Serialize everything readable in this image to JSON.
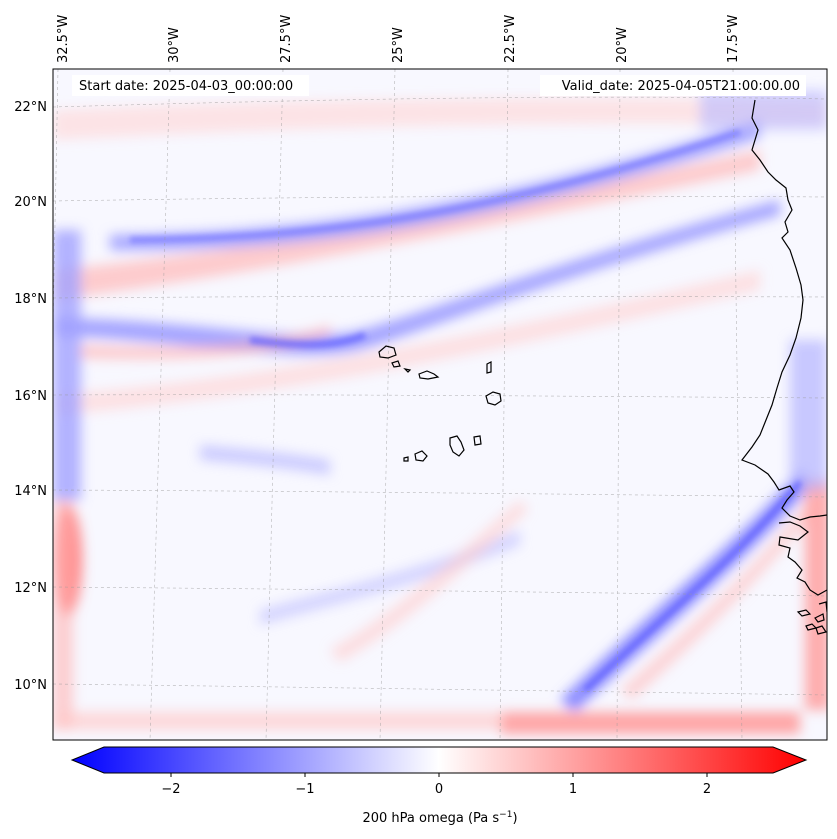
{
  "header": {
    "start_date": "Start date: 2025-04-03_00:00:00",
    "valid_date": "Valid_date: 2025-04-05T21:00:00.00"
  },
  "longitude_labels": [
    "32.5°W",
    "30°W",
    "27.5°W",
    "25°W",
    "22.5°W",
    "20°W",
    "17.5°W"
  ],
  "latitude_labels": [
    "22°N",
    "20°N",
    "18°N",
    "16°N",
    "14°N",
    "12°N",
    "10°N"
  ],
  "colorbar": {
    "ticks": [
      "−2",
      "−1",
      "0",
      "1",
      "2"
    ],
    "label": "200 hPa omega (Pa s",
    "label_sup": "−1",
    "label_close": ")",
    "min": -2.7,
    "max": 2.7,
    "cmap": "bwr",
    "color_low": "#0000ff",
    "color_mid": "#ffffff",
    "color_high": "#ff0000"
  },
  "map": {
    "lon_range": [
      -33.2,
      -15.4
    ],
    "lat_range": [
      8.9,
      22.8
    ],
    "field_bands": [
      {
        "feature": "blue band",
        "lat": 19.3,
        "value": -0.9
      },
      {
        "feature": "red band",
        "lat": 18.6,
        "value": 0.5
      },
      {
        "feature": "blue band",
        "lat": 17.0,
        "value": -1.0
      },
      {
        "feature": "blue diagonal",
        "lat": 11.5,
        "value": -1.1
      },
      {
        "feature": "red southern edge",
        "lat": 9.2,
        "value": 0.8
      },
      {
        "feature": "red western edge",
        "lat": 12.5,
        "value": 1.5
      }
    ]
  }
}
